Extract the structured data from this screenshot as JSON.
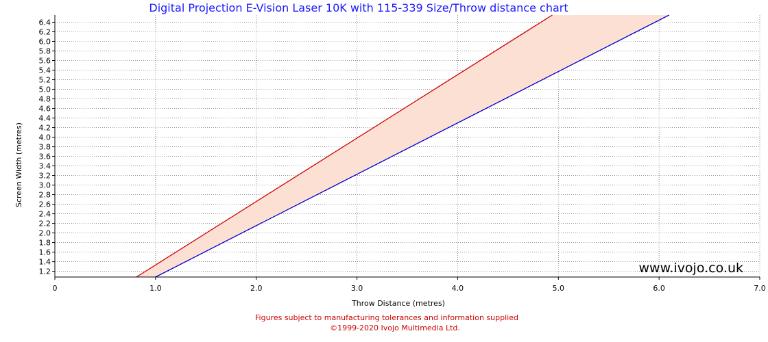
{
  "chart_data": {
    "type": "area",
    "title": "Digital Projection E-Vision Laser 10K with 115-339 Size/Throw distance chart",
    "xlabel": "Throw Distance (metres)",
    "ylabel": "Screen Width (metres)",
    "xlim": [
      0,
      7
    ],
    "ylim": [
      1.08,
      6.55
    ],
    "x_ticks": [
      "0",
      "1.0",
      "2.0",
      "3.0",
      "4.0",
      "5.0",
      "6.0",
      "7.0"
    ],
    "y_ticks": [
      "1.2",
      "1.4",
      "1.6",
      "1.8",
      "2.0",
      "2.2",
      "2.4",
      "2.6",
      "2.8",
      "3.0",
      "3.2",
      "3.4",
      "3.6",
      "3.8",
      "4.0",
      "4.2",
      "4.4",
      "4.6",
      "4.8",
      "5.0",
      "5.2",
      "5.4",
      "5.6",
      "5.8",
      "6.0",
      "6.2",
      "6.4"
    ],
    "grid": true,
    "series": [
      {
        "color": "#cc0000",
        "points": [
          [
            0.81,
            1.08
          ],
          [
            4.94,
            6.55
          ]
        ]
      },
      {
        "color": "#0000cc",
        "points": [
          [
            1.0,
            1.08
          ],
          [
            6.1,
            6.55
          ]
        ]
      }
    ],
    "fill_color": "#fde0d4",
    "watermark": "www.ivojo.co.uk"
  },
  "footer": {
    "disclaimer": "Figures subject to manufacturing tolerances and information supplied",
    "copyright": "©1999-2020 Ivojo Multimedia Ltd."
  }
}
